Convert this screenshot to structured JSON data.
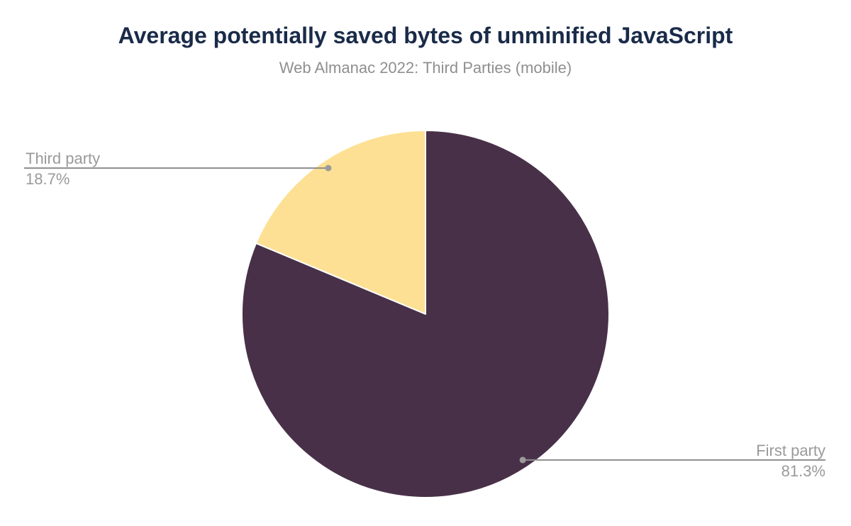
{
  "header": {
    "title": "Average potentially saved bytes of unminified JavaScript",
    "subtitle": "Web Almanac 2022: Third Parties (mobile)"
  },
  "colors": {
    "title": "#1a2b49",
    "subtitle": "#8f8f8f",
    "background": "#ffffff",
    "slice_separator": "#ffffff",
    "leader_line": "#8d8d8d",
    "leader_dot": "#9b9b9b",
    "label_text": "#9a9a9a"
  },
  "chart_data": {
    "type": "pie",
    "title": "Average potentially saved bytes of unminified JavaScript",
    "subtitle": "Web Almanac 2022: Third Parties (mobile)",
    "unit": "percent",
    "start_angle_deg": 0,
    "direction": "clockwise",
    "legend_position": "none",
    "slices": [
      {
        "label": "First party",
        "value": 81.3,
        "display_value": "81.3%",
        "color": "#483148",
        "label_side": "right"
      },
      {
        "label": "Third party",
        "value": 18.7,
        "display_value": "18.7%",
        "color": "#fde093",
        "label_side": "left"
      }
    ]
  }
}
